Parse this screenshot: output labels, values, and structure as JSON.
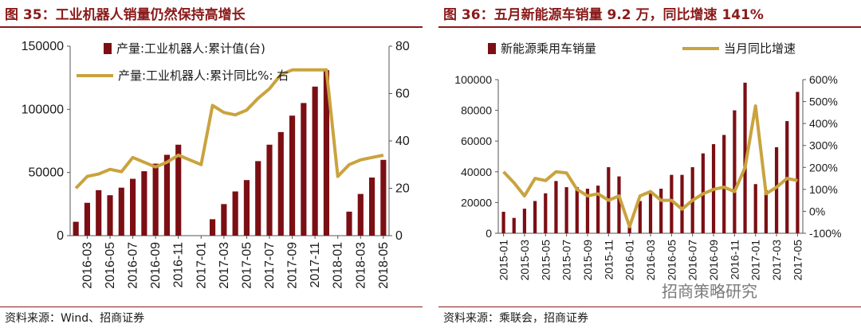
{
  "colors": {
    "bar": "#7b0f14",
    "line": "#c9a33e",
    "title": "#8b1a1a"
  },
  "left": {
    "fig_title": "图 35：工业机器人销量仍然保持高增长",
    "source": "资料来源：Wind、招商证券",
    "chart_data": {
      "type": "bar+line",
      "title": "图 35：工业机器人销量仍然保持高增长",
      "legend": [
        "产量:工业机器人:累计值(台)",
        "产量:工业机器人:累计同比%: 右"
      ],
      "categories": [
        "2016-02",
        "2016-03",
        "2016-04",
        "2016-05",
        "2016-06",
        "2016-07",
        "2016-08",
        "2016-09",
        "2016-10",
        "2016-11",
        "2016-12",
        "2017-01",
        "2017-02",
        "2017-03",
        "2017-04",
        "2017-05",
        "2017-06",
        "2017-07",
        "2017-08",
        "2017-09",
        "2017-10",
        "2017-11",
        "2017-12",
        "2018-01",
        "2018-02",
        "2018-03",
        "2018-04",
        "2018-05"
      ],
      "tick_labels": [
        "2016-03",
        "2016-05",
        "2016-07",
        "2016-09",
        "2016-11",
        "2017-01",
        "2017-03",
        "2017-05",
        "2017-07",
        "2017-09",
        "2017-11",
        "2018-01",
        "2018-03",
        "2018-05"
      ],
      "series": [
        {
          "name": "产量:工业机器人:累计值(台)",
          "axis": "left",
          "values": [
            11000,
            26000,
            36000,
            32000,
            38000,
            45000,
            51000,
            57000,
            64000,
            72000,
            null,
            null,
            13000,
            25000,
            35000,
            44000,
            59000,
            72000,
            82000,
            95000,
            105000,
            118000,
            131000,
            null,
            19000,
            33000,
            46000,
            60000
          ]
        },
        {
          "name": "产量:工业机器人:累计同比%: 右",
          "axis": "right",
          "values": [
            20,
            25,
            26,
            28,
            27,
            33,
            31,
            29,
            31,
            34,
            32,
            30,
            55,
            52,
            51,
            53,
            58,
            62,
            68,
            70,
            70,
            70,
            70,
            25,
            30,
            32,
            33,
            34
          ]
        }
      ],
      "y_left": {
        "min": 0,
        "max": 150000,
        "ticks": [
          "0",
          "50000",
          "100000",
          "150000"
        ],
        "tick_values": [
          0,
          50000,
          100000,
          150000
        ]
      },
      "y_right": {
        "min": 0,
        "max": 80,
        "ticks": [
          "0",
          "20",
          "40",
          "60",
          "80"
        ],
        "tick_values": [
          0,
          20,
          40,
          60,
          80
        ]
      }
    }
  },
  "right": {
    "fig_title": "图 36：五月新能源车销量 9.2 万，同比增速 141%",
    "source": "资料来源：乘联会，招商证券",
    "watermark": "招商策略研究",
    "chart_data": {
      "type": "bar+line",
      "title": "图 36：五月新能源车销量 9.2 万，同比增速 141%",
      "legend": [
        "新能源乘用车销量",
        "当月同比增速"
      ],
      "categories": [
        "2015-01",
        "2015-02",
        "2015-03",
        "2015-04",
        "2015-05",
        "2015-06",
        "2015-07",
        "2015-08",
        "2015-09",
        "2015-10",
        "2015-11",
        "2015-12",
        "2016-01",
        "2016-02",
        "2016-03",
        "2016-04",
        "2016-05",
        "2016-06",
        "2016-07",
        "2016-08",
        "2016-09",
        "2016-10",
        "2016-11",
        "2016-12",
        "2017-01",
        "2017-02",
        "2017-03",
        "2017-04",
        "2017-05"
      ],
      "tick_labels": [
        "2015-01",
        "2015-03",
        "2015-05",
        "2015-07",
        "2015-09",
        "2015-11",
        "2016-01",
        "2016-03",
        "2016-05",
        "2016-07",
        "2016-09",
        "2016-11",
        "2017-01",
        "2017-03",
        "2017-05"
      ],
      "series": [
        {
          "name": "新能源乘用车销量",
          "axis": "left",
          "values": [
            14000,
            10000,
            16000,
            21000,
            26000,
            34000,
            30000,
            30000,
            29000,
            31000,
            43000,
            37000,
            5000,
            21000,
            27000,
            29000,
            38000,
            38000,
            43000,
            52000,
            58000,
            64000,
            80000,
            98000,
            32000,
            28000,
            56000,
            73000,
            92000
          ]
        },
        {
          "name": "当月同比增速",
          "axis": "right",
          "values": [
            180,
            130,
            70,
            150,
            140,
            180,
            175,
            100,
            70,
            80,
            50,
            70,
            -70,
            70,
            90,
            50,
            50,
            10,
            50,
            80,
            100,
            110,
            90,
            200,
            480,
            80,
            110,
            150,
            140
          ]
        }
      ],
      "y_left": {
        "min": 0,
        "max": 100000,
        "ticks": [
          "0",
          "20000",
          "40000",
          "60000",
          "80000",
          "100000"
        ],
        "tick_values": [
          0,
          20000,
          40000,
          60000,
          80000,
          100000
        ]
      },
      "y_right": {
        "min": -100,
        "max": 600,
        "ticks": [
          "-100%",
          "0%",
          "100%",
          "200%",
          "300%",
          "400%",
          "500%",
          "600%"
        ],
        "tick_values": [
          -100,
          0,
          100,
          200,
          300,
          400,
          500,
          600
        ]
      }
    }
  }
}
